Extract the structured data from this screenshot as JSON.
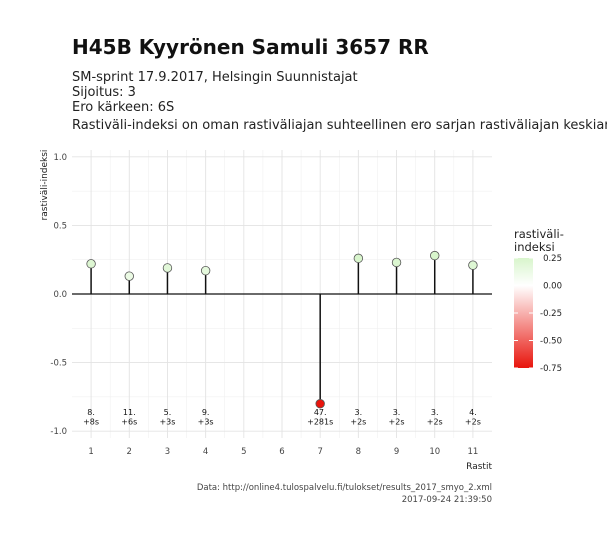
{
  "header": {
    "title": "H45B Kyyrönen Samuli 3657 RR",
    "subtitle_lines": [
      "SM-sprint 17.9.2017, Helsingin Suunnistajat",
      "Sijoitus: 3",
      "Ero kärkeen: 6S",
      "Rastiväli-indeksi on oman rastiväliajan suhteellinen ero sarjan rastiväliajan keskiarvoon"
    ]
  },
  "caption": {
    "source": "Data: http://online4.tulospalvelu.fi/tulokset/results_2017_smyo_2.xml",
    "timestamp": "2017-09-24 21:39:50"
  },
  "legend": {
    "title_lines": [
      "rastiväli-",
      "indeksi"
    ],
    "ticks": [
      "0.25",
      "0.00",
      "-0.25",
      "-0.50",
      "-0.75"
    ],
    "colors": {
      "high": "#d8f5cc",
      "mid": "#ffffff",
      "low": "#e8140c"
    }
  },
  "chart_data": {
    "type": "lollipop",
    "xlabel": "Rastit",
    "ylabel": "rastiväli-indeksi",
    "xlim": [
      0.5,
      11.5
    ],
    "ylim": [
      -1.05,
      1.05
    ],
    "x_ticks": [
      1,
      2,
      3,
      4,
      5,
      6,
      7,
      8,
      9,
      10,
      11
    ],
    "y_ticks": [
      -1.0,
      -0.5,
      0.0,
      0.5,
      1.0
    ],
    "y_tick_labels": [
      "-1.0",
      "-0.5",
      "0.0",
      "0.5",
      "1.0"
    ],
    "grid": true,
    "points": [
      {
        "x": 1,
        "y": 0.22,
        "rank": "8.",
        "diff": "+8s"
      },
      {
        "x": 2,
        "y": 0.13,
        "rank": "11.",
        "diff": "+6s"
      },
      {
        "x": 3,
        "y": 0.19,
        "rank": "5.",
        "diff": "+3s"
      },
      {
        "x": 4,
        "y": 0.17,
        "rank": "9.",
        "diff": "+3s"
      },
      {
        "x": 7,
        "y": -0.8,
        "rank": "47.",
        "diff": "+281s"
      },
      {
        "x": 8,
        "y": 0.26,
        "rank": "3.",
        "diff": "+2s"
      },
      {
        "x": 9,
        "y": 0.23,
        "rank": "3.",
        "diff": "+2s"
      },
      {
        "x": 10,
        "y": 0.28,
        "rank": "3.",
        "diff": "+2s"
      },
      {
        "x": 11,
        "y": 0.21,
        "rank": "4.",
        "diff": "+2s"
      }
    ]
  }
}
